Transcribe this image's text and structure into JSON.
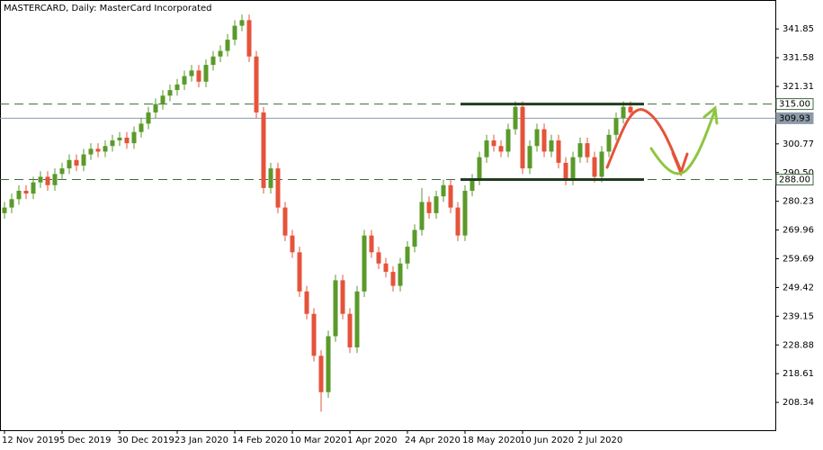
{
  "chart_data": {
    "type": "candlestick",
    "title": "MASTERCARD, Daily:  MasterCard Incorporated",
    "categories": [
      "12 Nov 2019",
      null,
      null,
      null,
      null,
      null,
      null,
      null,
      "5 Dec 2019",
      null,
      null,
      null,
      null,
      null,
      null,
      null,
      "30 Dec 2019",
      null,
      null,
      null,
      null,
      null,
      null,
      null,
      "23 Jan 2020",
      null,
      null,
      null,
      null,
      null,
      null,
      null,
      "14 Feb 2020",
      null,
      null,
      null,
      null,
      null,
      null,
      null,
      "10 Mar 2020",
      null,
      null,
      null,
      null,
      null,
      null,
      null,
      "1 Apr 2020",
      null,
      null,
      null,
      null,
      null,
      null,
      null,
      "24 Apr 2020",
      null,
      null,
      null,
      null,
      null,
      null,
      null,
      "18 May 2020",
      null,
      null,
      null,
      null,
      null,
      null,
      null,
      "10 Jun 2020",
      null,
      null,
      null,
      null,
      null,
      null,
      null,
      "2 Jul 2020",
      null,
      null,
      null,
      null,
      null,
      null,
      null
    ],
    "open": [
      276,
      278,
      281,
      284,
      283,
      287,
      289,
      286,
      290,
      292,
      295,
      293,
      297,
      299,
      298,
      300,
      302,
      303,
      301,
      305,
      308,
      312,
      315,
      318,
      320,
      322,
      325,
      327,
      323,
      329,
      332,
      334,
      338,
      343,
      345,
      332,
      312,
      285,
      292,
      278,
      268,
      262,
      248,
      240,
      225,
      212,
      232,
      252,
      240,
      228,
      248,
      268,
      262,
      258,
      255,
      250,
      258,
      264,
      270,
      280,
      276,
      282,
      286,
      278,
      268,
      284,
      288,
      296,
      302,
      300,
      298,
      306,
      314,
      292,
      300,
      306,
      298,
      302,
      294,
      288,
      296,
      301,
      296,
      289,
      298,
      304,
      310,
      314
    ],
    "high": [
      280,
      283,
      286,
      286,
      289,
      291,
      291,
      292,
      294,
      297,
      297,
      299,
      301,
      301,
      302,
      304,
      305,
      305,
      307,
      310,
      314,
      317,
      320,
      322,
      324,
      327,
      329,
      329,
      331,
      334,
      336,
      340,
      345,
      347,
      347,
      334,
      314,
      294,
      294,
      280,
      270,
      264,
      250,
      242,
      227,
      234,
      254,
      254,
      242,
      250,
      270,
      270,
      264,
      260,
      257,
      260,
      266,
      272,
      285,
      282,
      284,
      288,
      288,
      280,
      286,
      290,
      298,
      304,
      304,
      302,
      308,
      316,
      316,
      302,
      308,
      308,
      304,
      304,
      296,
      298,
      303,
      303,
      298,
      300,
      306,
      312,
      316,
      316
    ],
    "low": [
      274,
      276,
      279,
      281,
      281,
      285,
      284,
      284,
      288,
      290,
      291,
      291,
      295,
      296,
      296,
      298,
      300,
      299,
      299,
      303,
      306,
      310,
      313,
      316,
      318,
      320,
      323,
      321,
      321,
      327,
      330,
      332,
      336,
      341,
      330,
      310,
      283,
      283,
      276,
      266,
      260,
      246,
      238,
      223,
      205,
      210,
      230,
      238,
      226,
      226,
      246,
      260,
      256,
      253,
      248,
      248,
      256,
      262,
      268,
      274,
      274,
      280,
      276,
      266,
      266,
      282,
      286,
      294,
      298,
      296,
      296,
      304,
      290,
      290,
      298,
      296,
      296,
      292,
      286,
      286,
      294,
      294,
      287,
      287,
      296,
      302,
      308,
      310
    ],
    "close": [
      278,
      281,
      284,
      283,
      287,
      289,
      286,
      290,
      292,
      295,
      293,
      297,
      299,
      298,
      300,
      302,
      303,
      301,
      305,
      308,
      312,
      315,
      318,
      320,
      322,
      325,
      327,
      323,
      329,
      332,
      334,
      338,
      343,
      345,
      332,
      312,
      285,
      292,
      278,
      268,
      262,
      248,
      240,
      225,
      212,
      232,
      252,
      240,
      228,
      248,
      268,
      262,
      258,
      255,
      250,
      258,
      264,
      270,
      280,
      276,
      282,
      286,
      278,
      268,
      284,
      288,
      296,
      302,
      300,
      298,
      306,
      314,
      292,
      300,
      306,
      298,
      302,
      294,
      288,
      296,
      301,
      296,
      289,
      298,
      304,
      310,
      314,
      312
    ],
    "up_color": "#5a9a2a",
    "down_color": "#e5533a",
    "ylim": [
      198.4,
      352.2
    ],
    "yticks": [
      341.85,
      331.58,
      321.31,
      300.77,
      {
        "value": 290.5,
        "label": "290.50"
      },
      280.23,
      269.96,
      259.69,
      249.42,
      239.15,
      228.88,
      218.61,
      208.34
    ],
    "hlines": [
      {
        "value": 315,
        "label": "315.00",
        "color": "#3f6a3f",
        "style": "dashed"
      },
      {
        "value": 309.93,
        "label": "309.93",
        "color": "#8d9aa8",
        "style": "solid"
      },
      {
        "value": 288,
        "label": "288.00",
        "color": "#3f6a3f",
        "style": "dashed"
      }
    ],
    "channel": {
      "upper": 315,
      "lower": 288,
      "color": "#1f3d1f"
    }
  }
}
